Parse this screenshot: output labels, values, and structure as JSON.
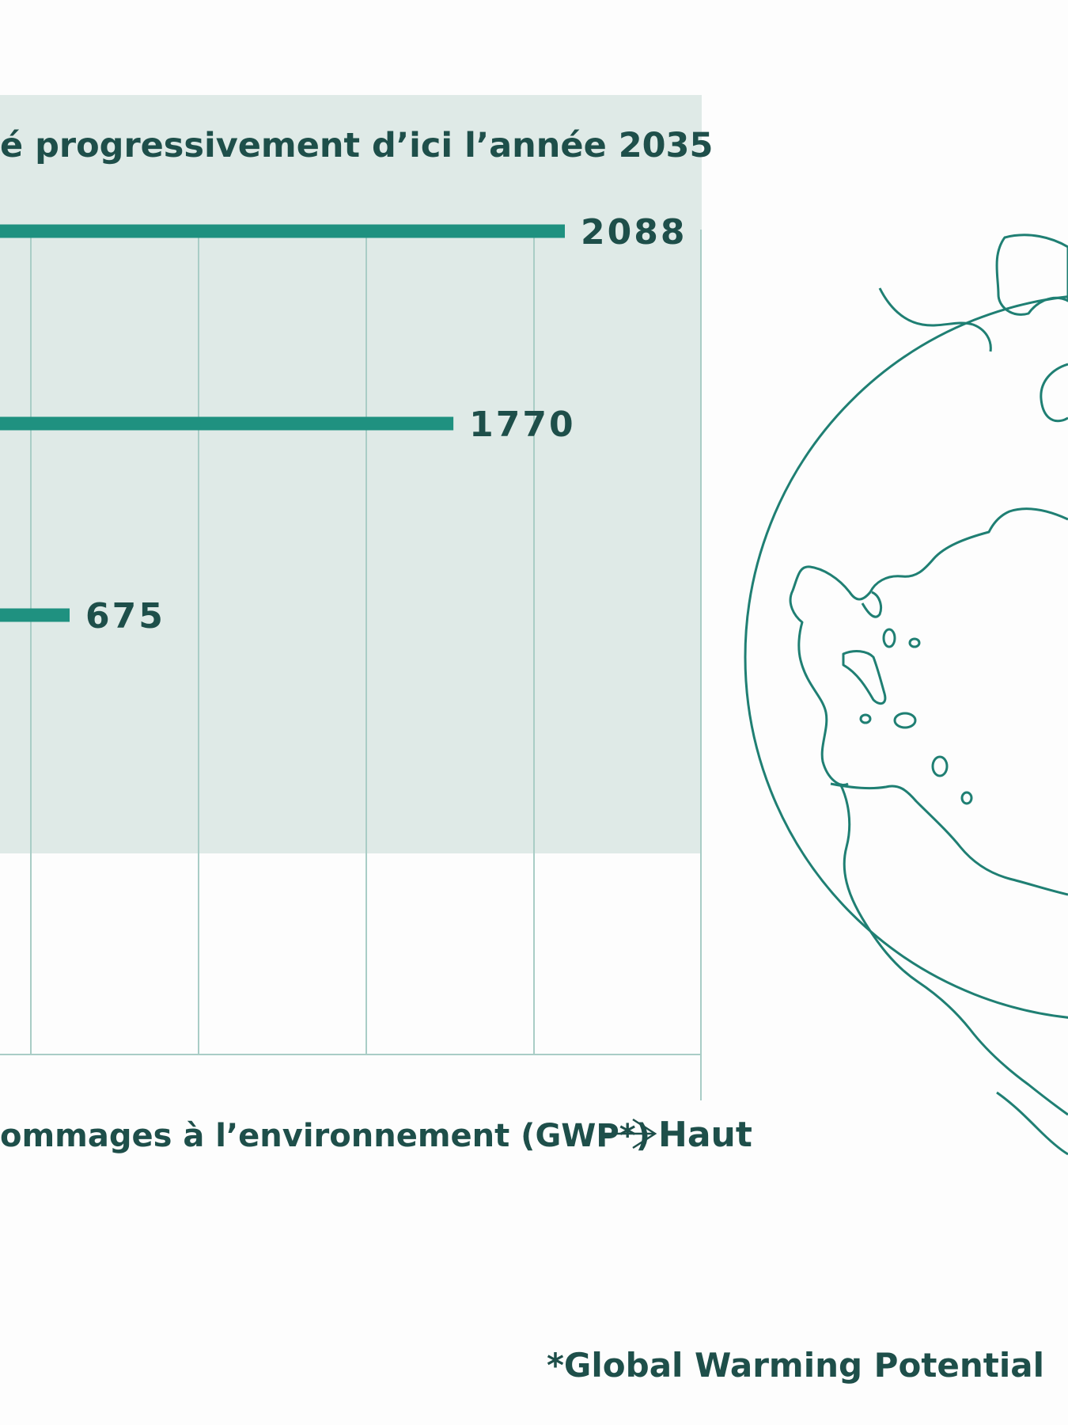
{
  "chart_data": {
    "type": "bar",
    "orientation": "horizontal",
    "title": "é progressivement d’ici l’année 2035",
    "xlabel": "ommages à l’environnement (GWP*)",
    "xlabel_end": "Haut",
    "grid": true,
    "bars": [
      {
        "value": 2088,
        "label": "2088"
      },
      {
        "value": 1770,
        "label": "1770"
      },
      {
        "value": 675,
        "label": "675"
      }
    ],
    "colors": {
      "bar": "#1f9180",
      "text": "#1e4f4a",
      "band": "#dfeae7",
      "grid": "#a9cdc6",
      "globe": "#1f7f73"
    }
  },
  "footnote": "*Global Warming Potential"
}
